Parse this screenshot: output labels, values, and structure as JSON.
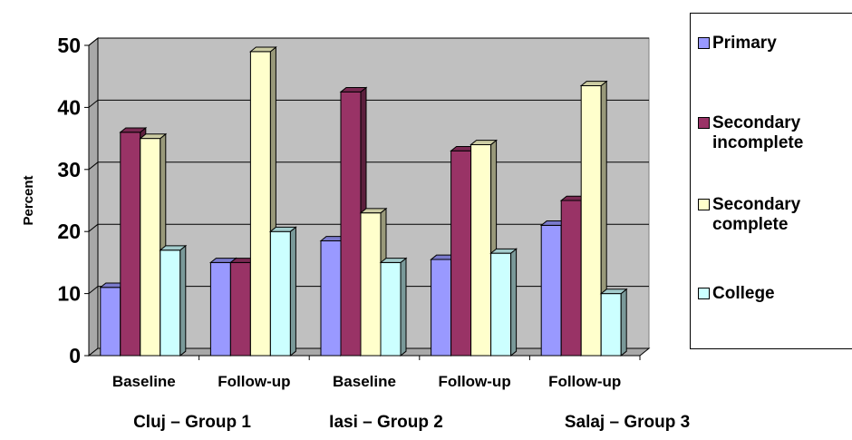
{
  "chart_data": {
    "type": "bar",
    "ylabel": "Percent",
    "ylim": [
      0,
      50
    ],
    "yticks": [
      0,
      10,
      20,
      30,
      40,
      50
    ],
    "grid": true,
    "legend_position": "right",
    "categories": [
      "Baseline",
      "Follow-up",
      "Baseline",
      "Follow-up",
      "Follow-up"
    ],
    "groups": [
      {
        "label": "Cluj – Group 1",
        "categories": [
          "Baseline",
          "Follow-up"
        ]
      },
      {
        "label": "Iasi – Group 2",
        "categories": [
          "Baseline",
          "Follow-up"
        ]
      },
      {
        "label": "Salaj – Group 3",
        "categories": [
          "Follow-up"
        ]
      }
    ],
    "series": [
      {
        "name": "Primary",
        "color": "#9999ff",
        "values": [
          11,
          15,
          18.5,
          15.5,
          21
        ]
      },
      {
        "name": "Secondary incomplete",
        "color": "#993366",
        "values": [
          36,
          15,
          42.5,
          33,
          25
        ]
      },
      {
        "name": "Secondary complete",
        "color": "#ffffcc",
        "values": [
          35,
          49,
          23,
          34,
          43.5
        ]
      },
      {
        "name": "College",
        "color": "#ccffff",
        "values": [
          17,
          20,
          15,
          16.5,
          10
        ]
      }
    ]
  },
  "legend": {
    "items": [
      {
        "lines": [
          "Primary"
        ],
        "color": "#9999ff"
      },
      {
        "lines": [
          "Secondary",
          "incomplete"
        ],
        "color": "#993366"
      },
      {
        "lines": [
          "Secondary",
          "complete"
        ],
        "color": "#ffffcc"
      },
      {
        "lines": [
          "College"
        ],
        "color": "#ccffff"
      }
    ]
  }
}
